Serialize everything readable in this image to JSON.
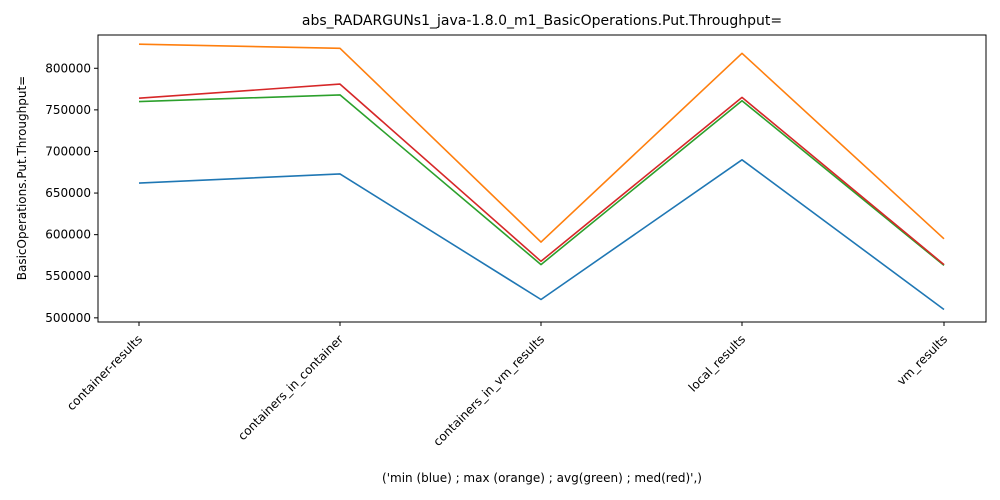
{
  "chart_data": {
    "type": "line",
    "title": "abs_RADARGUNs1_java-1.8.0_m1_BasicOperations.Put.Throughput=",
    "xlabel": "('min (blue) ; max (orange) ; avg(green) ; med(red)',)",
    "ylabel": "BasicOperations.Put.Throughput=",
    "categories": [
      "container-results",
      "containers_in_container",
      "containers_in_vm_results",
      "local_results",
      "vm_results"
    ],
    "ylim": [
      495000,
      840000
    ],
    "yticks": [
      500000,
      550000,
      600000,
      650000,
      700000,
      750000,
      800000
    ],
    "ytick_labels": [
      "500000",
      "550000",
      "600000",
      "650000",
      "700000",
      "750000",
      "800000"
    ],
    "grid": false,
    "series": [
      {
        "color": "#1f77b4",
        "values": [
          662000,
          673000,
          522000,
          690000,
          510000
        ]
      },
      {
        "color": "#ff7f0e",
        "values": [
          829000,
          824000,
          591000,
          818000,
          595000
        ]
      },
      {
        "color": "#2ca02c",
        "values": [
          760000,
          768000,
          564000,
          761000,
          563000
        ]
      },
      {
        "color": "#d62728",
        "values": [
          764000,
          781000,
          568000,
          765000,
          564000
        ]
      }
    ]
  }
}
